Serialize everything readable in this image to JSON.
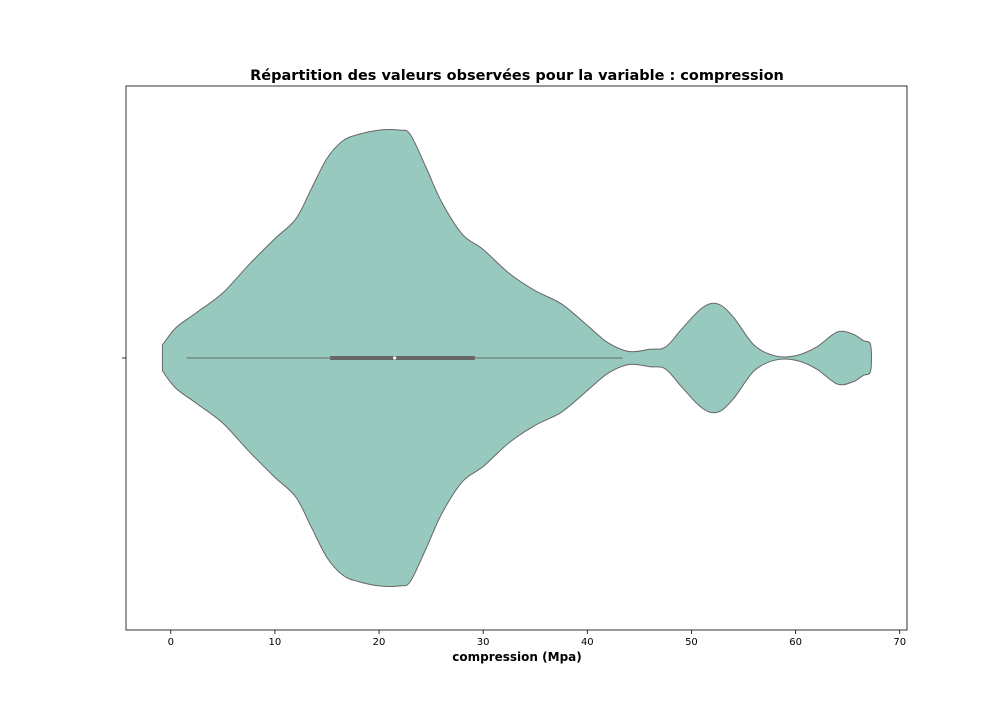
{
  "chart_data": {
    "type": "violin",
    "title": "Répartition des valeurs observées pour la variable : compression",
    "xlabel": "compression (Mpa)",
    "ylabel": "",
    "xlim": [
      -4.3,
      70.7
    ],
    "xticks": [
      0,
      10,
      20,
      30,
      40,
      50,
      60,
      70
    ],
    "xtick_labels": [
      "0",
      "10",
      "20",
      "30",
      "40",
      "50",
      "60",
      "70"
    ],
    "fill_color": "#98c9bf",
    "edge_color": "#666666",
    "box_color": "#666666",
    "grid": false,
    "density_profile": {
      "x": [
        -0.8,
        0.5,
        2.5,
        5.0,
        7.5,
        10.0,
        12.0,
        13.5,
        15.0,
        16.5,
        18.0,
        20.0,
        22.0,
        23.0,
        24.5,
        26.0,
        28.0,
        30.0,
        32.5,
        35.0,
        37.5,
        40.0,
        42.0,
        44.0,
        46.0,
        47.5,
        49.0,
        51.0,
        52.5,
        54.0,
        56.0,
        58.0,
        60.0,
        62.0,
        64.0,
        65.5,
        66.5,
        67.2
      ],
      "half_width": [
        0.06,
        0.14,
        0.21,
        0.3,
        0.43,
        0.55,
        0.64,
        0.78,
        0.92,
        1.0,
        1.03,
        1.05,
        1.05,
        1.03,
        0.88,
        0.72,
        0.57,
        0.5,
        0.39,
        0.31,
        0.25,
        0.15,
        0.07,
        0.03,
        0.04,
        0.05,
        0.13,
        0.23,
        0.25,
        0.19,
        0.06,
        0.01,
        0.01,
        0.05,
        0.12,
        0.11,
        0.08,
        0.06
      ]
    },
    "summary": {
      "whisker_low": 1.5,
      "q1": 15.3,
      "median": 21.5,
      "q3": 29.2,
      "whisker_high": 43.4
    }
  }
}
